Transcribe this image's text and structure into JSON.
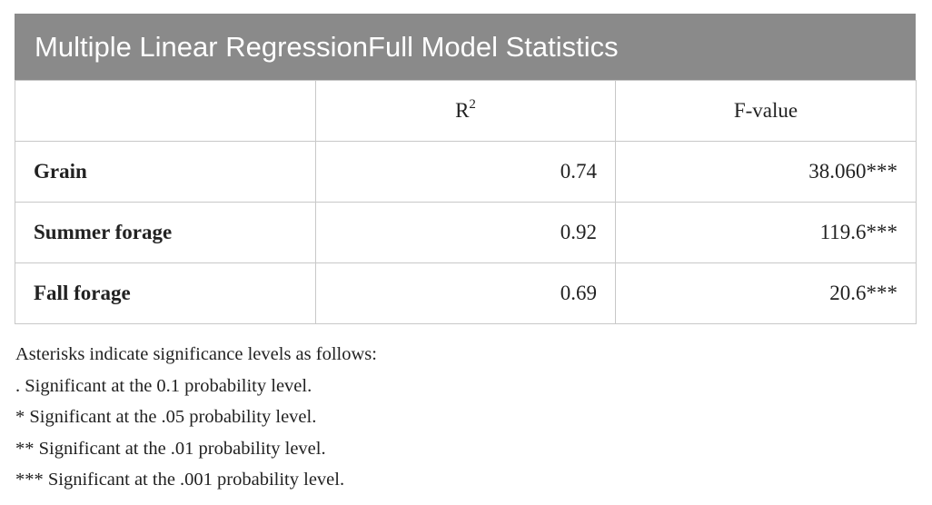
{
  "title": "Multiple Linear RegressionFull Model Statistics",
  "table": {
    "header": [
      null,
      {
        "text": "R",
        "sup": "2"
      },
      "F-value"
    ],
    "rows": [
      [
        "Grain",
        "0.74",
        "38.060***"
      ],
      [
        "Summer forage",
        "0.92",
        "119.6***"
      ],
      [
        "Fall forage",
        "0.69",
        "20.6***"
      ]
    ]
  },
  "notes": [
    "Asterisks indicate significance levels as follows:",
    ". Significant at the 0.1 probability level.",
    "* Significant at the .05 probability level.",
    "** Significant at the .01 probability level.",
    "*** Significant at the .001 probability level."
  ]
}
